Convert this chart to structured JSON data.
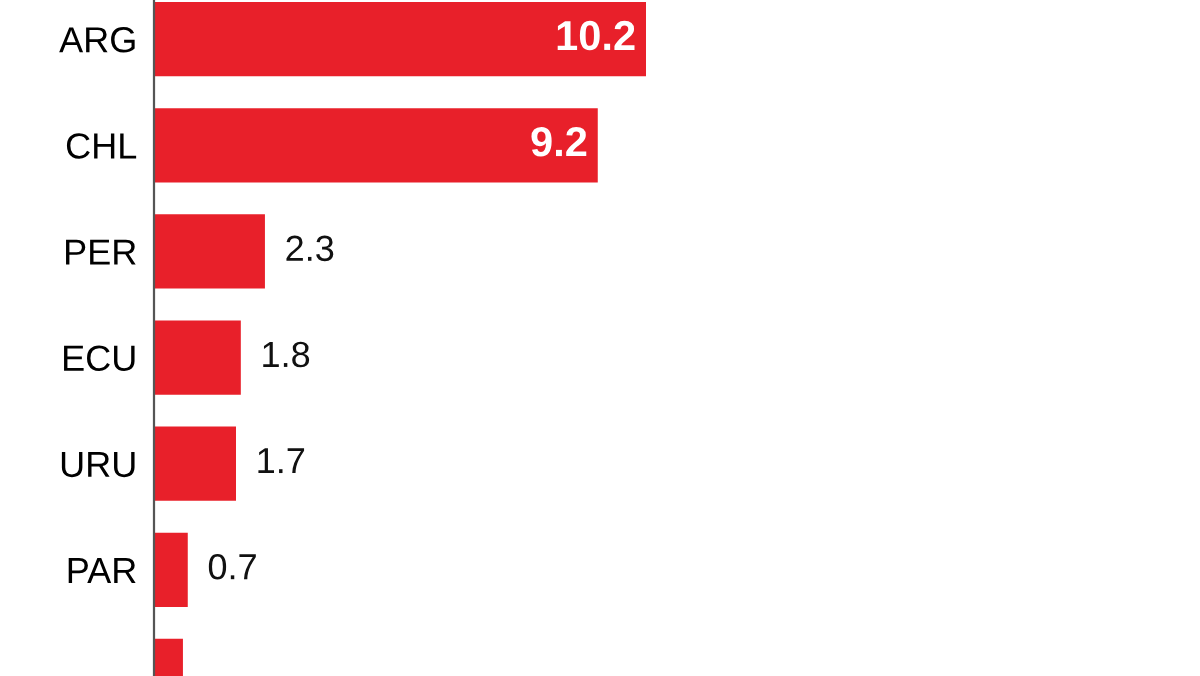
{
  "chart_data": {
    "type": "bar",
    "orientation": "horizontal",
    "categories": [
      "ARG",
      "CHL",
      "PER",
      "ECU",
      "URU",
      "PAR",
      null
    ],
    "values": [
      10.2,
      9.2,
      2.3,
      1.8,
      1.7,
      0.7,
      0.6
    ],
    "value_labels": [
      "10.2",
      "9.2",
      "2.3",
      "1.8",
      "1.7",
      "0.7",
      null
    ],
    "color": "#e8202a",
    "grid": false,
    "legend": false
  }
}
